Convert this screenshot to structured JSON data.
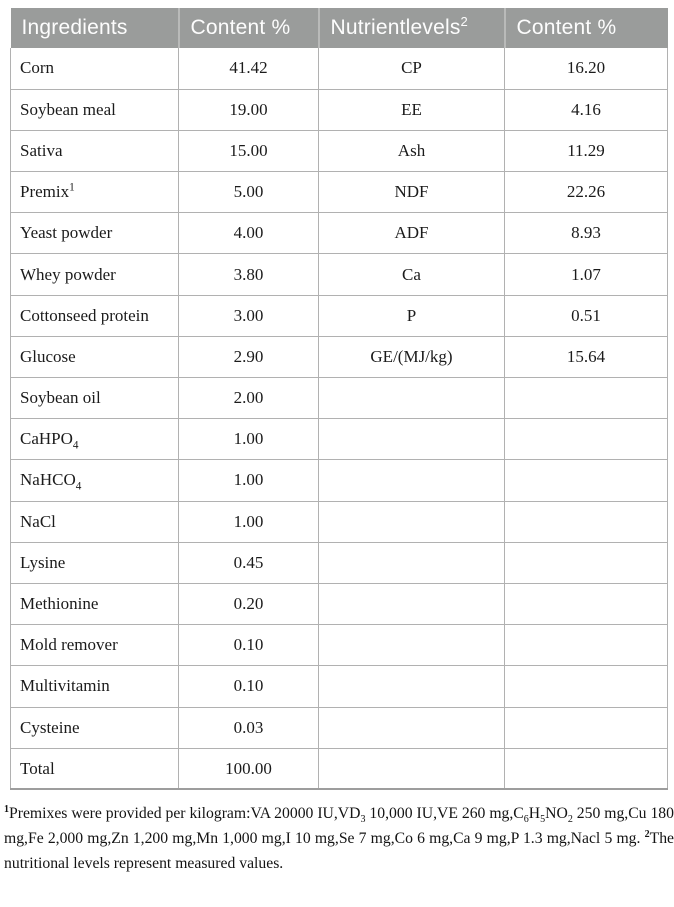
{
  "colors": {
    "header_bg": "#9a9c9b",
    "header_text": "#fdfdfd",
    "header_divider": "#b9bab9",
    "grid_border": "#b1b1b1",
    "table_bottom_border": "#9d9d9d",
    "body_text": "#1b1b1b",
    "page_bg": "#ffffff"
  },
  "table": {
    "headers": [
      {
        "label": [
          {
            "t": "Ingredients"
          }
        ]
      },
      {
        "label": [
          {
            "t": "Content %"
          }
        ]
      },
      {
        "label": [
          {
            "t": "Nutrientlevels"
          },
          {
            "t": "2",
            "s": "sup"
          }
        ]
      },
      {
        "label": [
          {
            "t": "Content %"
          }
        ]
      }
    ],
    "rows": [
      {
        "ingredient": [
          {
            "t": "Corn"
          }
        ],
        "content": "41.42",
        "nutrient": [
          {
            "t": "CP"
          }
        ],
        "nutrient_content": "16.20"
      },
      {
        "ingredient": [
          {
            "t": "Soybean meal"
          }
        ],
        "content": "19.00",
        "nutrient": [
          {
            "t": "EE"
          }
        ],
        "nutrient_content": "4.16"
      },
      {
        "ingredient": [
          {
            "t": "Sativa"
          }
        ],
        "content": "15.00",
        "nutrient": [
          {
            "t": "Ash"
          }
        ],
        "nutrient_content": "11.29"
      },
      {
        "ingredient": [
          {
            "t": "Premix"
          },
          {
            "t": "1",
            "s": "sup"
          }
        ],
        "content": "5.00",
        "nutrient": [
          {
            "t": "NDF"
          }
        ],
        "nutrient_content": "22.26"
      },
      {
        "ingredient": [
          {
            "t": "Yeast powder"
          }
        ],
        "content": "4.00",
        "nutrient": [
          {
            "t": "ADF"
          }
        ],
        "nutrient_content": "8.93"
      },
      {
        "ingredient": [
          {
            "t": "Whey powder"
          }
        ],
        "content": "3.80",
        "nutrient": [
          {
            "t": "Ca"
          }
        ],
        "nutrient_content": "1.07"
      },
      {
        "ingredient": [
          {
            "t": "Cottonseed protein"
          }
        ],
        "content": "3.00",
        "nutrient": [
          {
            "t": "P"
          }
        ],
        "nutrient_content": "0.51"
      },
      {
        "ingredient": [
          {
            "t": "Glucose"
          }
        ],
        "content": "2.90",
        "nutrient": [
          {
            "t": "GE/(MJ/kg)"
          }
        ],
        "nutrient_content": "15.64"
      },
      {
        "ingredient": [
          {
            "t": "Soybean oil"
          }
        ],
        "content": "2.00",
        "nutrient": [],
        "nutrient_content": ""
      },
      {
        "ingredient": [
          {
            "t": "CaHPO"
          },
          {
            "t": "4",
            "s": "sub"
          }
        ],
        "content": "1.00",
        "nutrient": [],
        "nutrient_content": ""
      },
      {
        "ingredient": [
          {
            "t": "NaHCO"
          },
          {
            "t": "4",
            "s": "sub"
          }
        ],
        "content": "1.00",
        "nutrient": [],
        "nutrient_content": ""
      },
      {
        "ingredient": [
          {
            "t": "NaCl"
          }
        ],
        "content": "1.00",
        "nutrient": [],
        "nutrient_content": ""
      },
      {
        "ingredient": [
          {
            "t": "Lysine"
          }
        ],
        "content": "0.45",
        "nutrient": [],
        "nutrient_content": ""
      },
      {
        "ingredient": [
          {
            "t": "Methionine"
          }
        ],
        "content": "0.20",
        "nutrient": [],
        "nutrient_content": ""
      },
      {
        "ingredient": [
          {
            "t": "Mold remover"
          }
        ],
        "content": "0.10",
        "nutrient": [],
        "nutrient_content": ""
      },
      {
        "ingredient": [
          {
            "t": "Multivitamin"
          }
        ],
        "content": "0.10",
        "nutrient": [],
        "nutrient_content": ""
      },
      {
        "ingredient": [
          {
            "t": "Cysteine"
          }
        ],
        "content": "0.03",
        "nutrient": [],
        "nutrient_content": ""
      },
      {
        "ingredient": [
          {
            "t": "Total"
          }
        ],
        "content": "100.00",
        "nutrient": [],
        "nutrient_content": ""
      }
    ]
  },
  "footnote": [
    {
      "t": "1",
      "s": "sup"
    },
    {
      "t": "Premixes were provided per kilogram:VA 20000 IU,VD"
    },
    {
      "t": "3",
      "s": "sub"
    },
    {
      "t": " 10,000 IU,VE 260 mg,C"
    },
    {
      "t": "6",
      "s": "sub"
    },
    {
      "t": "H"
    },
    {
      "t": "5",
      "s": "sub"
    },
    {
      "t": "NO"
    },
    {
      "t": "2",
      "s": "sub"
    },
    {
      "t": " 250 mg,Cu 180 mg,Fe 2,000 mg,Zn 1,200 mg,Mn 1,000 mg,I 10 mg,Se 7 mg,Co 6 mg,Ca 9 mg,P 1.3 mg,Nacl 5 mg. "
    },
    {
      "t": "2",
      "s": "sup"
    },
    {
      "t": "The nutritional levels represent measured values."
    }
  ]
}
